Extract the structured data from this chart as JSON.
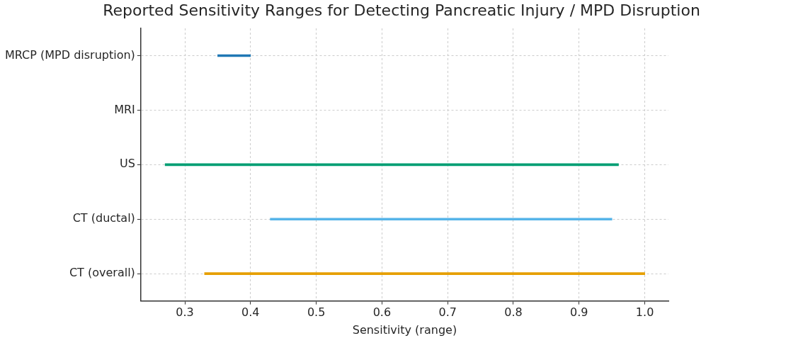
{
  "chart_data": {
    "type": "bar",
    "orientation": "horizontal",
    "title": "Reported Sensitivity Ranges for Detecting Pancreatic Injury / MPD Disruption",
    "xlabel": "Sensitivity (range)",
    "categories": [
      "MRCP (MPD disruption)",
      "MRI",
      "US",
      "CT (ductal)",
      "CT (overall)"
    ],
    "base": [
      0.35,
      null,
      0.27,
      0.43,
      0.33
    ],
    "values": [
      0.05,
      null,
      0.69,
      0.52,
      0.67
    ],
    "colors": [
      "#1f77b4",
      "#7f7f7f",
      "#009e73",
      "#56b4e9",
      "#e69f00"
    ],
    "xlim": [
      0.233,
      1.036
    ],
    "xticks": [
      {
        "value": 0.3,
        "label": "0.3"
      },
      {
        "value": 0.4,
        "label": "0.4"
      },
      {
        "value": 0.5,
        "label": "0.5"
      },
      {
        "value": 0.6,
        "label": "0.6"
      },
      {
        "value": 0.7,
        "label": "0.7"
      },
      {
        "value": 0.8,
        "label": "0.8"
      },
      {
        "value": 0.9,
        "label": "0.9"
      },
      {
        "value": 1.0,
        "label": "1.0"
      }
    ],
    "grid": true
  }
}
